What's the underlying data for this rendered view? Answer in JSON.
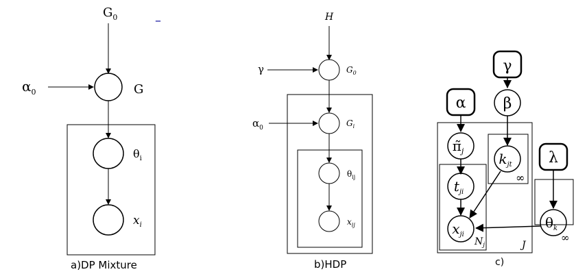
{
  "panel_a": {
    "caption": "a)DP Mixture",
    "G0": "G",
    "G0_sub": "0",
    "alpha": "α",
    "alpha_sub": "0",
    "G": "G",
    "theta": "θ",
    "theta_sub": "i",
    "x": "x",
    "x_sub": "i",
    "dash": "–"
  },
  "panel_b": {
    "caption": "b)HDP",
    "H": "H",
    "gamma": "γ",
    "G0": "G",
    "G0_sub": "0",
    "alpha": "α",
    "alpha_sub": "0",
    "Gj": "G",
    "Gj_sub": "i",
    "theta": "θ",
    "theta_sub": "ij",
    "x": "x",
    "x_sub": "ij"
  },
  "panel_c": {
    "caption": "c)",
    "gamma": "γ",
    "alpha": "α",
    "beta": "β",
    "lambda": "λ",
    "pi": "π̃",
    "pi_sub": "j",
    "k": "k",
    "k_sub": "jt",
    "t": "t",
    "t_sub": "ji",
    "x": "x",
    "x_sub": "ji",
    "theta": "θ",
    "theta_sub": "k",
    "plate_Nj": "N",
    "plate_Nj_sub": "j",
    "plate_J": "J",
    "plate_inf_k": "∞",
    "plate_inf_theta": "∞"
  },
  "colors": {
    "observed_fill": "#6e6e6e",
    "observed_fill_c": "#bdbdbd",
    "dash_color": "#1a1aa0"
  }
}
